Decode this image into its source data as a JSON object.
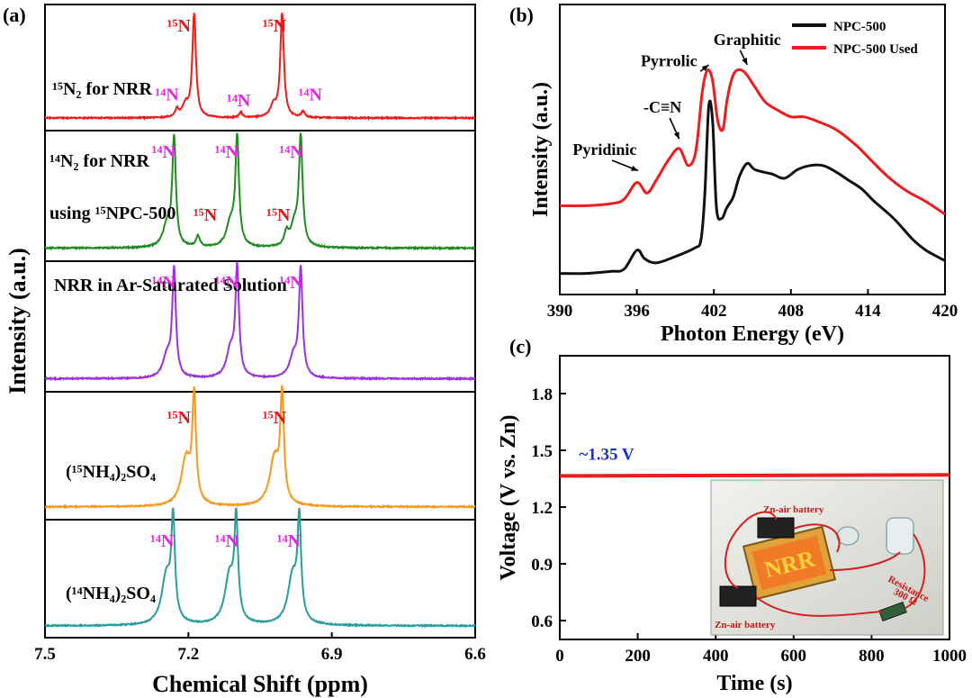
{
  "panel_a": {
    "label": "(a)",
    "xlabel": "Chemical Shift (ppm)",
    "ylabel": "Intensity (a.u.)",
    "xlim": [
      7.5,
      6.6
    ],
    "xticks": [
      "6.6",
      "6.9",
      "7.2",
      "7.5"
    ],
    "subpanels": [
      {
        "title_lines": [
          "¹⁵N₂ for NRR"
        ],
        "color": "#ee1c1c",
        "peaks": [
          {
            "x": 7.004,
            "h": 1.0,
            "w": 0.0045
          },
          {
            "x": 7.022,
            "h": 0.11,
            "w": 0.008
          },
          {
            "x": 6.96,
            "h": 0.06,
            "w": 0.004
          },
          {
            "x": 7.09,
            "h": 0.05,
            "w": 0.004
          },
          {
            "x": 7.188,
            "h": 1.0,
            "w": 0.0045
          },
          {
            "x": 7.206,
            "h": 0.12,
            "w": 0.008
          },
          {
            "x": 7.224,
            "h": 0.07,
            "w": 0.004
          }
        ],
        "annotations": [
          {
            "text": "¹⁵N",
            "x": 7.02,
            "y": 0.97,
            "color": "#e0181c"
          },
          {
            "text": "¹⁵N",
            "x": 7.22,
            "y": 0.97,
            "color": "#e0181c"
          },
          {
            "text": "¹⁴N",
            "x": 6.945,
            "y": 0.18,
            "color": "#e626e6"
          },
          {
            "text": "¹⁴N",
            "x": 7.095,
            "y": 0.12,
            "color": "#e626e6"
          },
          {
            "text": "¹⁴N",
            "x": 7.245,
            "y": 0.18,
            "color": "#e626e6"
          }
        ]
      },
      {
        "title_lines": [
          "¹⁴N₂ for NRR",
          "using ¹⁵NPC-500"
        ],
        "color": "#1e8c1e",
        "peaks": [
          {
            "x": 6.965,
            "h": 1.0,
            "w": 0.0045
          },
          {
            "x": 6.978,
            "h": 0.2,
            "w": 0.01
          },
          {
            "x": 6.995,
            "h": 0.12,
            "w": 0.005
          },
          {
            "x": 7.098,
            "h": 1.0,
            "w": 0.0045
          },
          {
            "x": 7.112,
            "h": 0.22,
            "w": 0.01
          },
          {
            "x": 7.18,
            "h": 0.1,
            "w": 0.005
          },
          {
            "x": 7.23,
            "h": 1.0,
            "w": 0.0045
          },
          {
            "x": 7.245,
            "h": 0.2,
            "w": 0.01
          }
        ],
        "annotations": [
          {
            "text": "¹⁴N",
            "x": 6.985,
            "y": 0.9,
            "color": "#e626e6"
          },
          {
            "text": "¹⁴N",
            "x": 7.12,
            "y": 0.9,
            "color": "#e626e6"
          },
          {
            "text": "¹⁴N",
            "x": 7.252,
            "y": 0.9,
            "color": "#e626e6"
          },
          {
            "text": "¹⁵N",
            "x": 7.012,
            "y": 0.27,
            "color": "#e0181c"
          },
          {
            "text": "¹⁵N",
            "x": 7.165,
            "y": 0.27,
            "color": "#e0181c"
          }
        ]
      },
      {
        "title_lines": [
          "NRR in Ar-Saturated Solution"
        ],
        "color": "#9933dd",
        "peaks": [
          {
            "x": 6.965,
            "h": 1.0,
            "w": 0.0045
          },
          {
            "x": 6.98,
            "h": 0.2,
            "w": 0.01
          },
          {
            "x": 7.098,
            "h": 1.0,
            "w": 0.0045
          },
          {
            "x": 7.112,
            "h": 0.25,
            "w": 0.01
          },
          {
            "x": 7.23,
            "h": 1.0,
            "w": 0.0045
          },
          {
            "x": 7.245,
            "h": 0.2,
            "w": 0.01
          }
        ],
        "annotations": [
          {
            "text": "¹⁴N",
            "x": 6.985,
            "y": 1.62,
            "color": "#e626e6"
          },
          {
            "text": "¹⁴N",
            "x": 7.12,
            "y": 1.62,
            "color": "#e626e6"
          },
          {
            "text": "¹⁴N",
            "x": 7.252,
            "y": 1.62,
            "color": "#e626e6"
          }
        ]
      },
      {
        "title_lines": [
          "(¹⁵NH₄)₂SO₄"
        ],
        "color": "#f59a1e",
        "peaks": [
          {
            "x": 7.004,
            "h": 1.0,
            "w": 0.0045
          },
          {
            "x": 7.02,
            "h": 0.45,
            "w": 0.012
          },
          {
            "x": 7.188,
            "h": 1.0,
            "w": 0.0045
          },
          {
            "x": 7.205,
            "h": 0.45,
            "w": 0.012
          }
        ],
        "annotations": [
          {
            "text": "¹⁵N",
            "x": 7.02,
            "y": 0.84,
            "color": "#e0181c"
          },
          {
            "text": "¹⁵N",
            "x": 7.22,
            "y": 0.84,
            "color": "#e0181c"
          }
        ]
      },
      {
        "title_lines": [
          "(¹⁴NH₄)₂SO₄"
        ],
        "color": "#2a9c9c",
        "peaks": [
          {
            "x": 6.968,
            "h": 1.0,
            "w": 0.0045
          },
          {
            "x": 6.982,
            "h": 0.5,
            "w": 0.012
          },
          {
            "x": 7.1,
            "h": 1.0,
            "w": 0.0045
          },
          {
            "x": 7.114,
            "h": 0.5,
            "w": 0.012
          },
          {
            "x": 7.232,
            "h": 1.0,
            "w": 0.0045
          },
          {
            "x": 7.246,
            "h": 0.5,
            "w": 0.012
          }
        ],
        "annotations": [
          {
            "text": "¹⁴N",
            "x": 6.99,
            "y": 0.92,
            "color": "#e626e6"
          },
          {
            "text": "¹⁴N",
            "x": 7.12,
            "y": 0.92,
            "color": "#e626e6"
          },
          {
            "text": "¹⁴N",
            "x": 7.255,
            "y": 0.92,
            "color": "#e626e6"
          }
        ]
      }
    ]
  },
  "panel_b": {
    "label": "(b)",
    "xlabel": "Photon Energy (eV)",
    "ylabel": "Intensity (a.u.)",
    "xlim": [
      390,
      420
    ],
    "xticks": [
      390,
      396,
      402,
      408,
      414,
      420
    ],
    "legend": [
      {
        "name": "NPC-500",
        "color": "#111111"
      },
      {
        "name": "NPC-500 Used",
        "color": "#ee1c1c"
      }
    ],
    "series": [
      {
        "name": "NPC-500",
        "color": "#111111",
        "x": [
          390,
          392,
          394,
          395,
          396,
          396.6,
          397.5,
          399,
          400.5,
          401,
          401.3,
          401.6,
          401.9,
          402.2,
          402.6,
          403,
          403.5,
          404,
          404.6,
          405.2,
          406.5,
          407.5,
          408.5,
          409.5,
          410.5,
          411.5,
          412.5,
          413.5,
          414.5,
          416,
          417.5,
          418.5,
          420
        ],
        "y": [
          0.04,
          0.04,
          0.05,
          0.06,
          0.15,
          0.11,
          0.09,
          0.12,
          0.16,
          0.2,
          0.42,
          0.83,
          0.76,
          0.35,
          0.3,
          0.35,
          0.4,
          0.5,
          0.56,
          0.53,
          0.51,
          0.49,
          0.53,
          0.55,
          0.55,
          0.52,
          0.48,
          0.44,
          0.38,
          0.3,
          0.2,
          0.15,
          0.1
        ]
      },
      {
        "name": "NPC-500 Used",
        "color": "#ee1c1c",
        "x": [
          390,
          392,
          394,
          395,
          396,
          396.8,
          397.6,
          398.5,
          399.3,
          400,
          400.6,
          401.1,
          401.5,
          401.9,
          402.3,
          402.7,
          403,
          403.4,
          403.8,
          404.4,
          405.2,
          406,
          407,
          408,
          409,
          410,
          411.5,
          413,
          414,
          415.5,
          417,
          418.5,
          420
        ],
        "y": [
          0.36,
          0.36,
          0.37,
          0.39,
          0.47,
          0.42,
          0.49,
          0.58,
          0.63,
          0.55,
          0.62,
          0.9,
          1.0,
          0.95,
          0.76,
          0.72,
          0.85,
          0.96,
          1.0,
          0.99,
          0.92,
          0.85,
          0.81,
          0.78,
          0.78,
          0.76,
          0.72,
          0.65,
          0.59,
          0.5,
          0.43,
          0.38,
          0.32
        ]
      }
    ],
    "annotations": [
      {
        "text": "Graphitic",
        "x": 404.6,
        "y": 1.12
      },
      {
        "text": "Pyrrolic",
        "x": 398.5,
        "y": 1.02
      },
      {
        "text": "-C≡N",
        "x": 398.0,
        "y": 0.8
      },
      {
        "text": "Pyridinic",
        "x": 393.5,
        "y": 0.6
      }
    ]
  },
  "panel_c": {
    "label": "(c)",
    "xlabel": "Time (s)",
    "ylabel": "Voltage (V vs. Zn)",
    "xlim": [
      0,
      1000
    ],
    "ylim": [
      0.5,
      2.0
    ],
    "xticks": [
      0,
      200,
      400,
      600,
      800,
      1000
    ],
    "yticks": [
      "0.6",
      "0.9",
      "1.2",
      "1.5",
      "1.8"
    ],
    "series": {
      "name": "",
      "color": "#ee1c1c",
      "x": [
        0,
        1000
      ],
      "y": [
        1.365,
        1.37
      ]
    },
    "value_label": "~1.35 V",
    "value_label_color": "#1a2fd0",
    "inset": {
      "sign_text": "NRR",
      "labels": [
        "Zn-air battery",
        "Zn-air battery",
        "Resistance",
        "300 Ω"
      ]
    }
  }
}
